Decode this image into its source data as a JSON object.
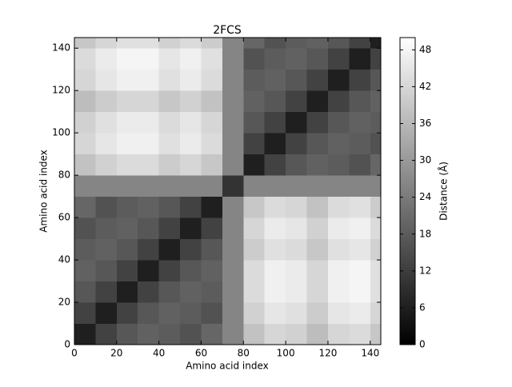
{
  "chart_data": {
    "type": "heatmap",
    "title": "2FCS",
    "xlabel": "Amino acid index",
    "ylabel": "Amino acid index",
    "colorbar_label": "Distance (Å)",
    "colormap": "gray",
    "xbins": [
      0,
      10,
      20,
      30,
      40,
      50,
      60,
      70,
      80,
      90,
      100,
      110,
      120,
      130,
      140,
      145
    ],
    "ybins": [
      0,
      10,
      20,
      30,
      40,
      50,
      60,
      70,
      80,
      90,
      100,
      110,
      120,
      130,
      140,
      145
    ],
    "values": [
      [
        6,
        13,
        17,
        19,
        18,
        16,
        20,
        26,
        38,
        42,
        41,
        37,
        42,
        43,
        39
      ],
      [
        13,
        6,
        13,
        17,
        19,
        18,
        16,
        26,
        41,
        45,
        44,
        40,
        45,
        46,
        42
      ],
      [
        17,
        13,
        6,
        13,
        17,
        19,
        18,
        26,
        43,
        47,
        46,
        42,
        47,
        48,
        44
      ],
      [
        19,
        17,
        13,
        6,
        13,
        17,
        19,
        26,
        43,
        47,
        46,
        42,
        47,
        48,
        44
      ],
      [
        18,
        19,
        17,
        13,
        6,
        13,
        17,
        26,
        40,
        44,
        43,
        39,
        44,
        45,
        41
      ],
      [
        16,
        18,
        19,
        17,
        13,
        6,
        13,
        26,
        42,
        46,
        45,
        41,
        46,
        47,
        43
      ],
      [
        20,
        16,
        18,
        19,
        17,
        13,
        6,
        26,
        39,
        43,
        42,
        38,
        43,
        44,
        40
      ],
      [
        26,
        26,
        26,
        26,
        26,
        26,
        26,
        10,
        26,
        26,
        26,
        26,
        26,
        26,
        26
      ],
      [
        38,
        41,
        43,
        43,
        40,
        42,
        39,
        26,
        6,
        13,
        17,
        19,
        18,
        16,
        20
      ],
      [
        42,
        45,
        47,
        47,
        44,
        46,
        43,
        26,
        13,
        6,
        13,
        17,
        19,
        18,
        16
      ],
      [
        41,
        44,
        46,
        46,
        43,
        45,
        42,
        26,
        17,
        13,
        6,
        13,
        17,
        19,
        18
      ],
      [
        37,
        40,
        42,
        42,
        39,
        41,
        38,
        26,
        19,
        17,
        13,
        6,
        13,
        17,
        19
      ],
      [
        42,
        45,
        47,
        47,
        44,
        46,
        43,
        26,
        18,
        19,
        17,
        13,
        6,
        13,
        17
      ],
      [
        43,
        46,
        48,
        48,
        45,
        47,
        44,
        26,
        16,
        18,
        19,
        17,
        13,
        6,
        13
      ],
      [
        39,
        42,
        44,
        44,
        41,
        43,
        40,
        26,
        20,
        16,
        18,
        19,
        17,
        13,
        6
      ]
    ],
    "xlim": [
      0,
      145
    ],
    "ylim": [
      0,
      145
    ],
    "xticks": [
      0,
      20,
      40,
      60,
      80,
      100,
      120,
      140
    ],
    "yticks": [
      0,
      20,
      40,
      60,
      80,
      100,
      120,
      140
    ],
    "clim": [
      0,
      50
    ],
    "cticks": [
      0,
      6,
      12,
      18,
      24,
      30,
      36,
      42,
      48
    ]
  }
}
